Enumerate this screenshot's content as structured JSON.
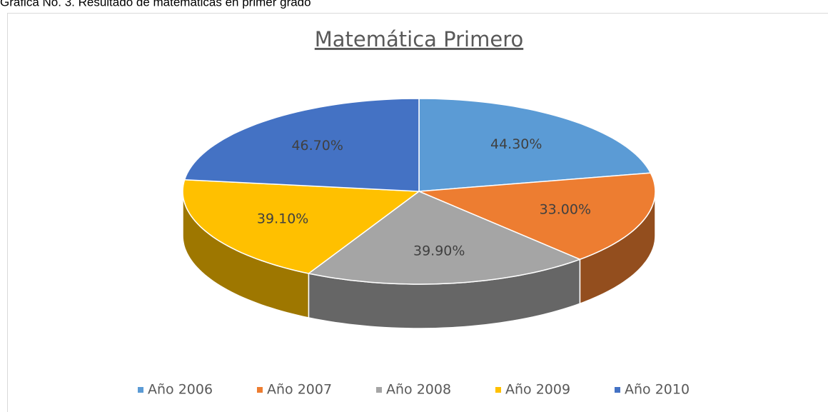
{
  "caption": "Gráfica No. 3. Resultado de matemáticas en primer grado",
  "chart_data": {
    "type": "pie",
    "title": "Matemática Primero",
    "categories": [
      "Año 2006",
      "Año 2007",
      "Año 2008",
      "Año 2009",
      "Año 2010"
    ],
    "values": [
      44.3,
      33.0,
      39.9,
      39.1,
      46.7
    ],
    "value_labels": [
      "44.30%",
      "33.00%",
      "39.90%",
      "39.10%",
      "46.70%"
    ],
    "colors": [
      "#5b9bd5",
      "#ed7d31",
      "#a5a5a5",
      "#ffc000",
      "#4472c4"
    ],
    "legend": "bottom"
  }
}
